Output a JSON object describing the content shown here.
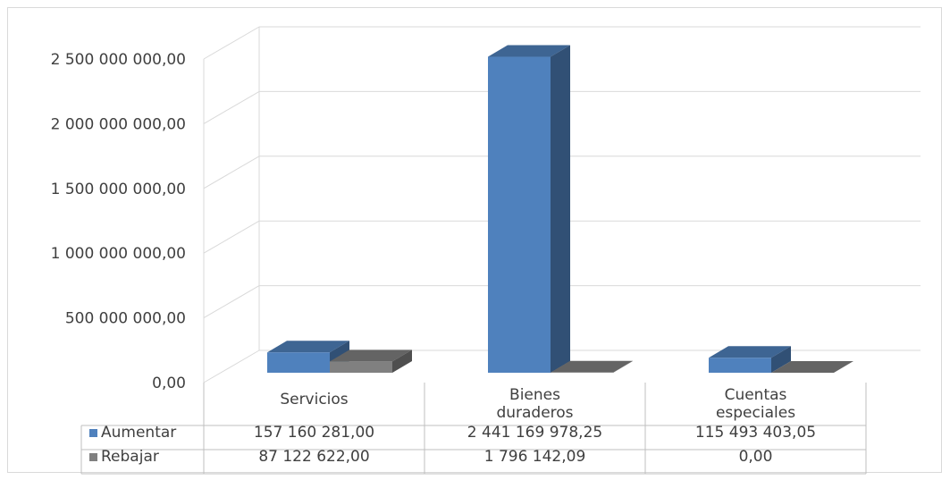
{
  "chart_data": {
    "type": "bar",
    "subtype": "3d-clustered-column-with-data-table",
    "categories": [
      [
        "Servicios"
      ],
      [
        "Bienes",
        "duraderos"
      ],
      [
        "Cuentas",
        "especiales"
      ]
    ],
    "series": [
      {
        "name": "Aumentar",
        "color": "#4F81BD",
        "values": [
          157160281.0,
          2441169978.25,
          115493403.05
        ],
        "labels": [
          "157 160 281,00",
          "2 441 169 978,25",
          "115 493 403,05"
        ]
      },
      {
        "name": "Rebajar",
        "color": "#808080",
        "values": [
          87122622.0,
          1796142.09,
          0.0
        ],
        "labels": [
          "87 122 622,00",
          "1 796 142,09",
          "0,00"
        ]
      }
    ],
    "y_ticks": [
      {
        "value": 0,
        "label": "0,00"
      },
      {
        "value": 500000000,
        "label": "500 000 000,00"
      },
      {
        "value": 1000000000,
        "label": "1 000 000 000,00"
      },
      {
        "value": 1500000000,
        "label": "1 500 000 000,00"
      },
      {
        "value": 2000000000,
        "label": "2 000 000 000,00"
      },
      {
        "value": 2500000000,
        "label": "2 500 000 000,00"
      }
    ],
    "ylim": [
      0,
      2500000000
    ],
    "grid": true,
    "legend": "data-table"
  }
}
